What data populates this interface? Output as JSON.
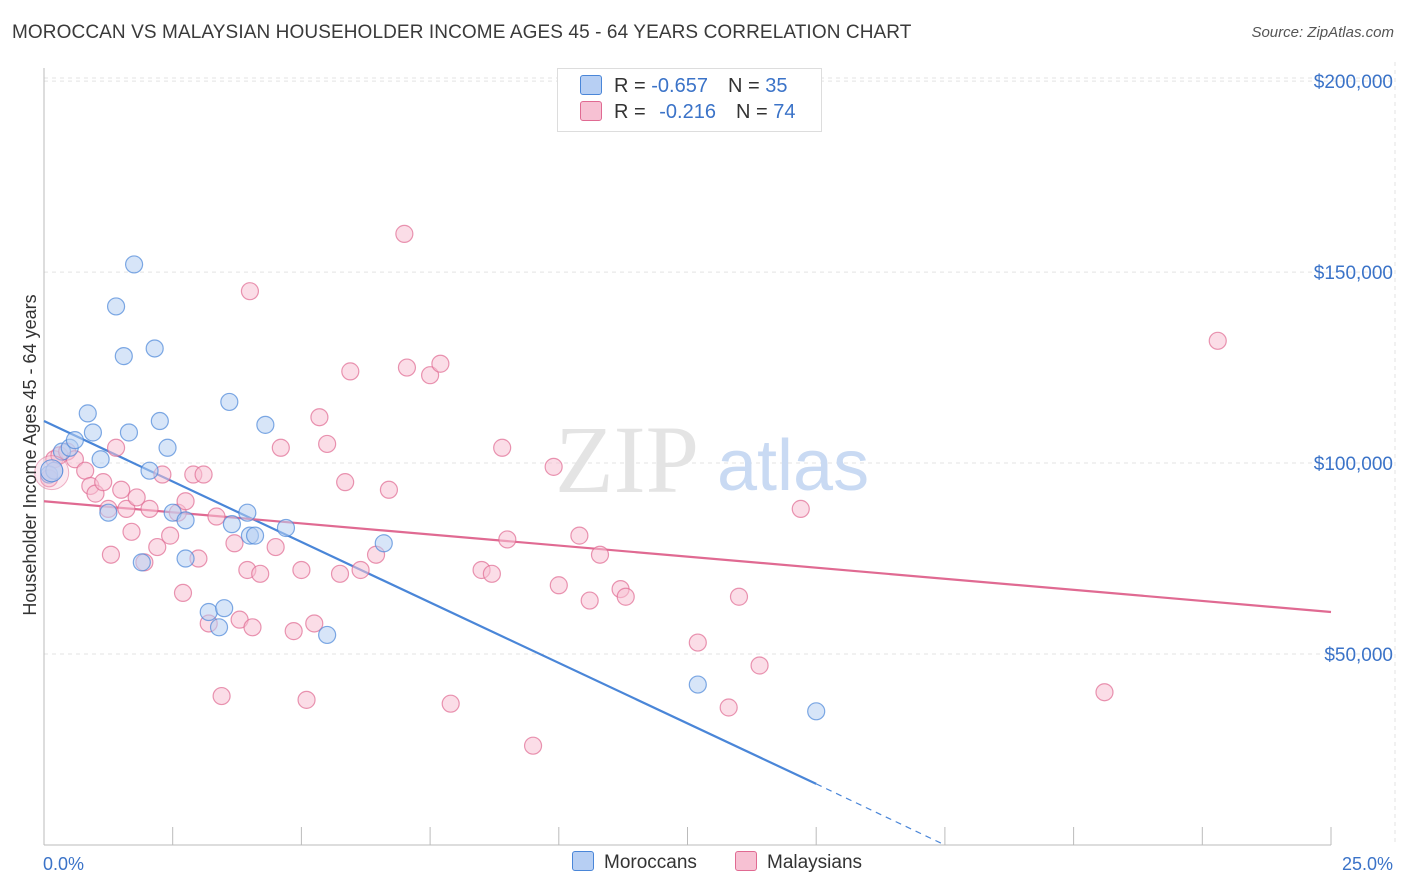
{
  "header": {
    "title": "MOROCCAN VS MALAYSIAN HOUSEHOLDER INCOME AGES 45 - 64 YEARS CORRELATION CHART",
    "source": "Source: ZipAtlas.com"
  },
  "watermark": {
    "zip": "ZIP",
    "atlas": "atlas"
  },
  "legend": {
    "rows": [
      {
        "r_label": "R = ",
        "r_value": "-0.657",
        "n_label": "N = ",
        "n_value": "35"
      },
      {
        "r_label": "R = ",
        "r_value": "-0.216",
        "n_label": "N = ",
        "n_value": "74"
      }
    ]
  },
  "colors": {
    "moroccans": "#4a86d8",
    "moroccans_fill": "#b7cff3",
    "malaysians": "#e06a92",
    "malaysians_fill": "#f7c1d3",
    "tick_text": "#3b73c8"
  },
  "chart_data": {
    "type": "scatter",
    "title": "MOROCCAN VS MALAYSIAN HOUSEHOLDER INCOME AGES 45 - 64 YEARS CORRELATION CHART",
    "xlabel": "",
    "ylabel": "Householder Income Ages 45 - 64 years",
    "xlim": [
      0,
      25
    ],
    "ylim": [
      0,
      205000
    ],
    "x_tick_labels": [
      "0.0%",
      "25.0%"
    ],
    "y_ticks": [
      50000,
      100000,
      150000,
      200000
    ],
    "y_tick_labels": [
      "$50,000",
      "$100,000",
      "$150,000",
      "$200,000"
    ],
    "grid": true,
    "legend_position": "top-center",
    "series": [
      {
        "name": "Moroccans",
        "color": "#4a86d8",
        "points": [
          [
            0.1,
            97000
          ],
          [
            0.2,
            98000
          ],
          [
            0.35,
            103000
          ],
          [
            0.5,
            104000
          ],
          [
            0.6,
            106000
          ],
          [
            0.85,
            113000
          ],
          [
            0.95,
            108000
          ],
          [
            1.1,
            101000
          ],
          [
            1.25,
            87000
          ],
          [
            1.4,
            141000
          ],
          [
            1.55,
            128000
          ],
          [
            1.65,
            108000
          ],
          [
            1.75,
            152000
          ],
          [
            1.9,
            74000
          ],
          [
            2.05,
            98000
          ],
          [
            2.15,
            130000
          ],
          [
            2.25,
            111000
          ],
          [
            2.4,
            104000
          ],
          [
            2.5,
            87000
          ],
          [
            2.75,
            85000
          ],
          [
            2.75,
            75000
          ],
          [
            3.2,
            61000
          ],
          [
            3.4,
            57000
          ],
          [
            3.5,
            62000
          ],
          [
            3.6,
            116000
          ],
          [
            3.65,
            84000
          ],
          [
            3.95,
            87000
          ],
          [
            4.0,
            81000
          ],
          [
            4.1,
            81000
          ],
          [
            4.3,
            110000
          ],
          [
            4.7,
            83000
          ],
          [
            5.5,
            55000
          ],
          [
            6.6,
            79000
          ],
          [
            12.7,
            42000
          ],
          [
            15.0,
            35000
          ]
        ]
      },
      {
        "name": "Malaysians",
        "color": "#e06a92",
        "points": [
          [
            0.1,
            96000
          ],
          [
            0.2,
            101000
          ],
          [
            0.3,
            102000
          ],
          [
            0.45,
            103000
          ],
          [
            0.6,
            101000
          ],
          [
            0.8,
            98000
          ],
          [
            0.9,
            94000
          ],
          [
            1.0,
            92000
          ],
          [
            1.15,
            95000
          ],
          [
            1.25,
            88000
          ],
          [
            1.3,
            76000
          ],
          [
            1.4,
            104000
          ],
          [
            1.5,
            93000
          ],
          [
            1.6,
            88000
          ],
          [
            1.7,
            82000
          ],
          [
            1.8,
            91000
          ],
          [
            1.95,
            74000
          ],
          [
            2.05,
            88000
          ],
          [
            2.2,
            78000
          ],
          [
            2.3,
            97000
          ],
          [
            2.45,
            81000
          ],
          [
            2.6,
            87000
          ],
          [
            2.7,
            66000
          ],
          [
            2.75,
            90000
          ],
          [
            2.9,
            97000
          ],
          [
            3.0,
            75000
          ],
          [
            3.1,
            97000
          ],
          [
            3.2,
            58000
          ],
          [
            3.35,
            86000
          ],
          [
            3.45,
            39000
          ],
          [
            3.7,
            79000
          ],
          [
            3.8,
            59000
          ],
          [
            3.95,
            72000
          ],
          [
            4.05,
            57000
          ],
          [
            4.2,
            71000
          ],
          [
            4.5,
            78000
          ],
          [
            4.6,
            104000
          ],
          [
            4.85,
            56000
          ],
          [
            5.0,
            72000
          ],
          [
            5.1,
            38000
          ],
          [
            5.25,
            58000
          ],
          [
            5.35,
            112000
          ],
          [
            5.5,
            105000
          ],
          [
            5.75,
            71000
          ],
          [
            5.85,
            95000
          ],
          [
            5.95,
            124000
          ],
          [
            6.15,
            72000
          ],
          [
            6.45,
            76000
          ],
          [
            6.7,
            93000
          ],
          [
            7.0,
            160000
          ],
          [
            7.05,
            125000
          ],
          [
            7.5,
            123000
          ],
          [
            7.7,
            126000
          ],
          [
            7.9,
            37000
          ],
          [
            8.5,
            72000
          ],
          [
            8.7,
            71000
          ],
          [
            8.9,
            104000
          ],
          [
            9.0,
            80000
          ],
          [
            9.5,
            26000
          ],
          [
            9.9,
            99000
          ],
          [
            10.0,
            68000
          ],
          [
            10.4,
            81000
          ],
          [
            10.6,
            64000
          ],
          [
            10.8,
            76000
          ],
          [
            11.2,
            67000
          ],
          [
            11.3,
            65000
          ],
          [
            12.7,
            53000
          ],
          [
            13.3,
            36000
          ],
          [
            13.5,
            65000
          ],
          [
            13.9,
            47000
          ],
          [
            14.7,
            88000
          ],
          [
            20.6,
            40000
          ],
          [
            22.8,
            132000
          ],
          [
            4.0,
            145000
          ]
        ]
      }
    ],
    "trendlines": [
      {
        "series": "Moroccans",
        "x0": 0,
        "y0": 111000,
        "x1": 15,
        "y1": 16000,
        "dashed_to_x": 17.5,
        "dashed_to_y": 0
      },
      {
        "series": "Malaysians",
        "x0": 0,
        "y0": 90000,
        "x1": 25,
        "y1": 61000
      }
    ]
  },
  "bottom_legend": {
    "items": [
      {
        "label": "Moroccans"
      },
      {
        "label": "Malaysians"
      }
    ]
  }
}
